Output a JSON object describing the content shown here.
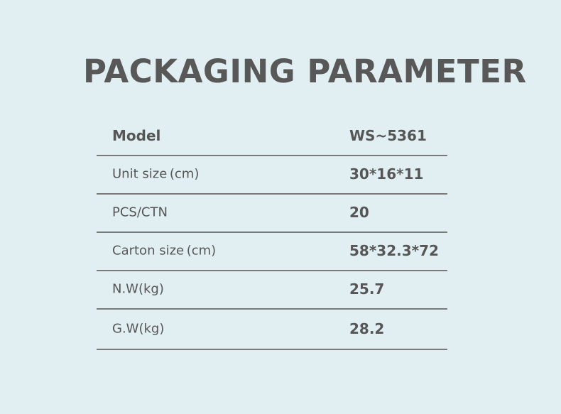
{
  "title": "PACKAGING PARAMETER",
  "rows": [
    {
      "label": "Model",
      "value": "WS~5361"
    },
    {
      "label": "Unit size (cm)",
      "value": "30*16*11"
    },
    {
      "label": "PCS/CTN",
      "value": "20"
    },
    {
      "label": "Carton size (cm)",
      "value": "58*32.3*72"
    },
    {
      "label": "N.W(kg)",
      "value": "25.7"
    },
    {
      "label": "G.W(kg)",
      "value": "28.2"
    }
  ]
}
